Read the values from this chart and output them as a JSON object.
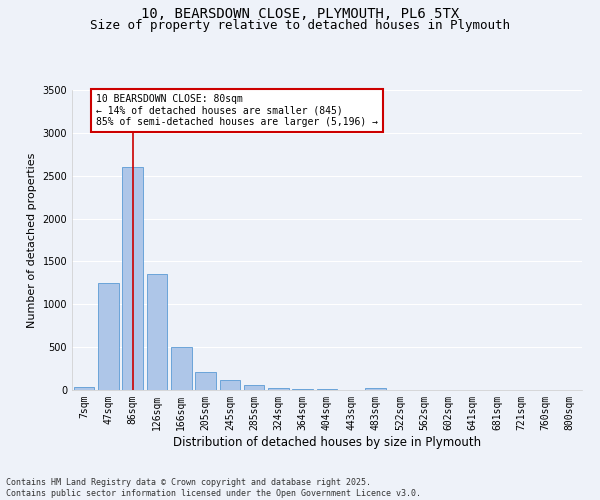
{
  "title_line1": "10, BEARSDOWN CLOSE, PLYMOUTH, PL6 5TX",
  "title_line2": "Size of property relative to detached houses in Plymouth",
  "xlabel": "Distribution of detached houses by size in Plymouth",
  "ylabel": "Number of detached properties",
  "categories": [
    "7sqm",
    "47sqm",
    "86sqm",
    "126sqm",
    "166sqm",
    "205sqm",
    "245sqm",
    "285sqm",
    "324sqm",
    "364sqm",
    "404sqm",
    "443sqm",
    "483sqm",
    "522sqm",
    "562sqm",
    "602sqm",
    "641sqm",
    "681sqm",
    "721sqm",
    "760sqm",
    "800sqm"
  ],
  "values": [
    40,
    1250,
    2600,
    1350,
    500,
    210,
    115,
    55,
    25,
    15,
    10,
    5,
    20,
    0,
    0,
    0,
    0,
    0,
    0,
    0,
    0
  ],
  "bar_color": "#aec6e8",
  "bar_edge_color": "#5b9bd5",
  "vline_x_index": 2,
  "vline_color": "#cc0000",
  "ylim": [
    0,
    3500
  ],
  "yticks": [
    0,
    500,
    1000,
    1500,
    2000,
    2500,
    3000,
    3500
  ],
  "annotation_text": "10 BEARSDOWN CLOSE: 80sqm\n← 14% of detached houses are smaller (845)\n85% of semi-detached houses are larger (5,196) →",
  "annotation_box_color": "#ffffff",
  "annotation_box_edge": "#cc0000",
  "footer_line1": "Contains HM Land Registry data © Crown copyright and database right 2025.",
  "footer_line2": "Contains public sector information licensed under the Open Government Licence v3.0.",
  "bg_color": "#eef2f9",
  "grid_color": "#ffffff",
  "title_fontsize": 10,
  "subtitle_fontsize": 9,
  "tick_fontsize": 7,
  "ylabel_fontsize": 8,
  "xlabel_fontsize": 8.5,
  "annot_fontsize": 7,
  "footer_fontsize": 6
}
